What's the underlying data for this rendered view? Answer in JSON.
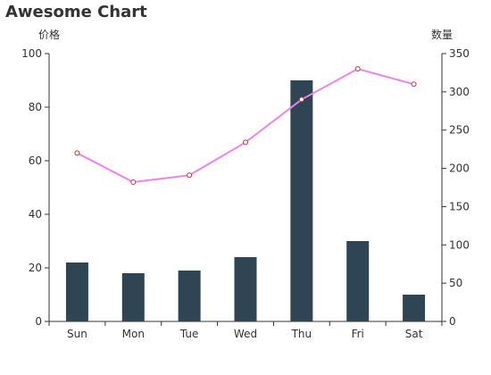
{
  "chart_data": {
    "type": "bar",
    "title": "Awesome Chart",
    "categories": [
      "Sun",
      "Mon",
      "Tue",
      "Wed",
      "Thu",
      "Fri",
      "Sat"
    ],
    "y_left": {
      "label": "价格",
      "ylim": [
        0,
        100
      ],
      "ticks": [
        0,
        20,
        40,
        60,
        80,
        100
      ]
    },
    "y_right": {
      "label": "数量",
      "ylim": [
        0,
        350
      ],
      "ticks": [
        0,
        50,
        100,
        150,
        200,
        250,
        300,
        350
      ]
    },
    "series": [
      {
        "type": "bar",
        "axis": "left",
        "color": "#2f4554",
        "values": [
          22,
          18,
          19,
          24,
          90,
          30,
          10
        ]
      },
      {
        "type": "line",
        "axis": "right",
        "color": "#ee82ee",
        "marker_color": "#c23531",
        "values": [
          220,
          182,
          191,
          234,
          290,
          330,
          310
        ]
      }
    ],
    "grid": false,
    "legend": "none"
  }
}
